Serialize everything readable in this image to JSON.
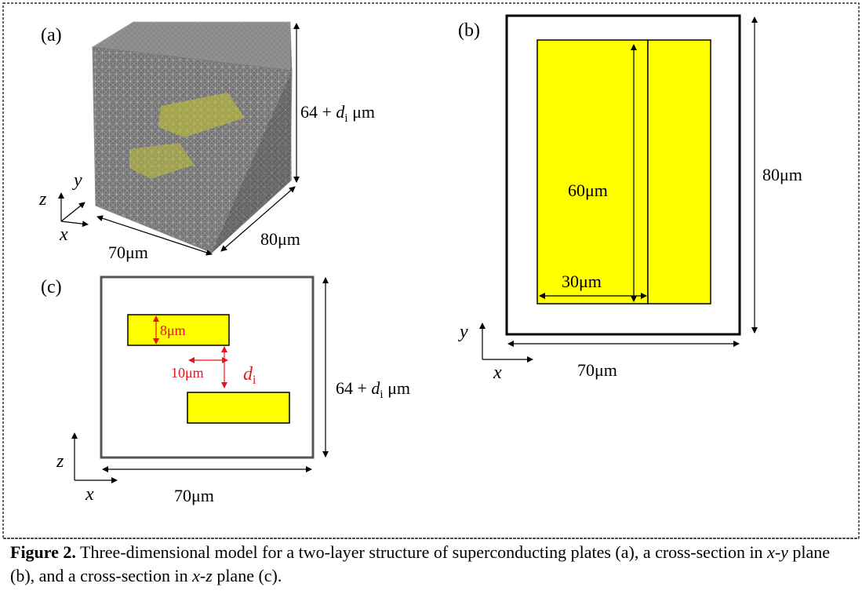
{
  "panel_a": {
    "label": "(a)",
    "height_label_prefix": "64 + ",
    "height_label_var": "d",
    "height_label_sub": "i",
    "height_label_unit": " μm",
    "width_label": "70μm",
    "depth_label": "80μm",
    "axis_x": "x",
    "axis_y": "y",
    "axis_z": "z"
  },
  "panel_b": {
    "label": "(b)",
    "inner_height_label": "60μm",
    "inner_width_label": "30μm",
    "outer_height_label": "80μm",
    "outer_width_label": "70μm",
    "axis_x": "x",
    "axis_y": "y"
  },
  "panel_c": {
    "label": "(c)",
    "thickness_label": "8μm",
    "offset_label": "10μm",
    "gap_label_var": "d",
    "gap_label_sub": "i",
    "height_label_prefix": "64 + ",
    "height_label_var": "d",
    "height_label_sub": "i",
    "height_label_unit": " μm",
    "width_label": "70μm",
    "axis_x": "x",
    "axis_z": "z"
  },
  "caption": {
    "figure_label": "Figure 2.",
    "text_1": " Three-dimensional model for a two-layer structure of superconducting plates (a), a cross-section in ",
    "x1": "x",
    "sep1": "-",
    "y1": "y",
    "text_2": " plane (b), and a cross-section in ",
    "x2": "x",
    "sep2": "-",
    "z2": "z",
    "text_3": " plane (c)."
  },
  "colors": {
    "plate": "#ffff00",
    "annotation_red": "#e8141c",
    "mesh": "#4a4a4a"
  }
}
